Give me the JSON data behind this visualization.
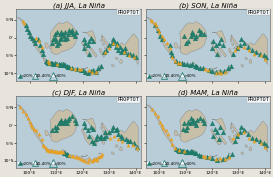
{
  "titles": [
    "(a) JJA, La Niña",
    "(b) SON, La Niña",
    "(c) DJF, La Niña",
    "(d) MAM, La Niña"
  ],
  "label_text": "PROPTOT",
  "legend_labels": [
    "<20%",
    "20-40%",
    ">40%"
  ],
  "teal_color": "#1e7b6a",
  "orange_color": "#e8a020",
  "land_color": "#c8bfa8",
  "ocean_color": "#b8cdd8",
  "border_color": "#888888",
  "fig_bg": "#e8e4dc",
  "lon_range": [
    95,
    142
  ],
  "lat_range": [
    -12,
    8
  ],
  "figsize": [
    2.73,
    1.77
  ],
  "dpi": 100,
  "title_fontsize": 5.0,
  "tick_fontsize": 3.2,
  "legend_fontsize": 3.0,
  "label_fontsize": 3.8,
  "marker_size_small": 2.5,
  "marker_size_large": 3.5
}
